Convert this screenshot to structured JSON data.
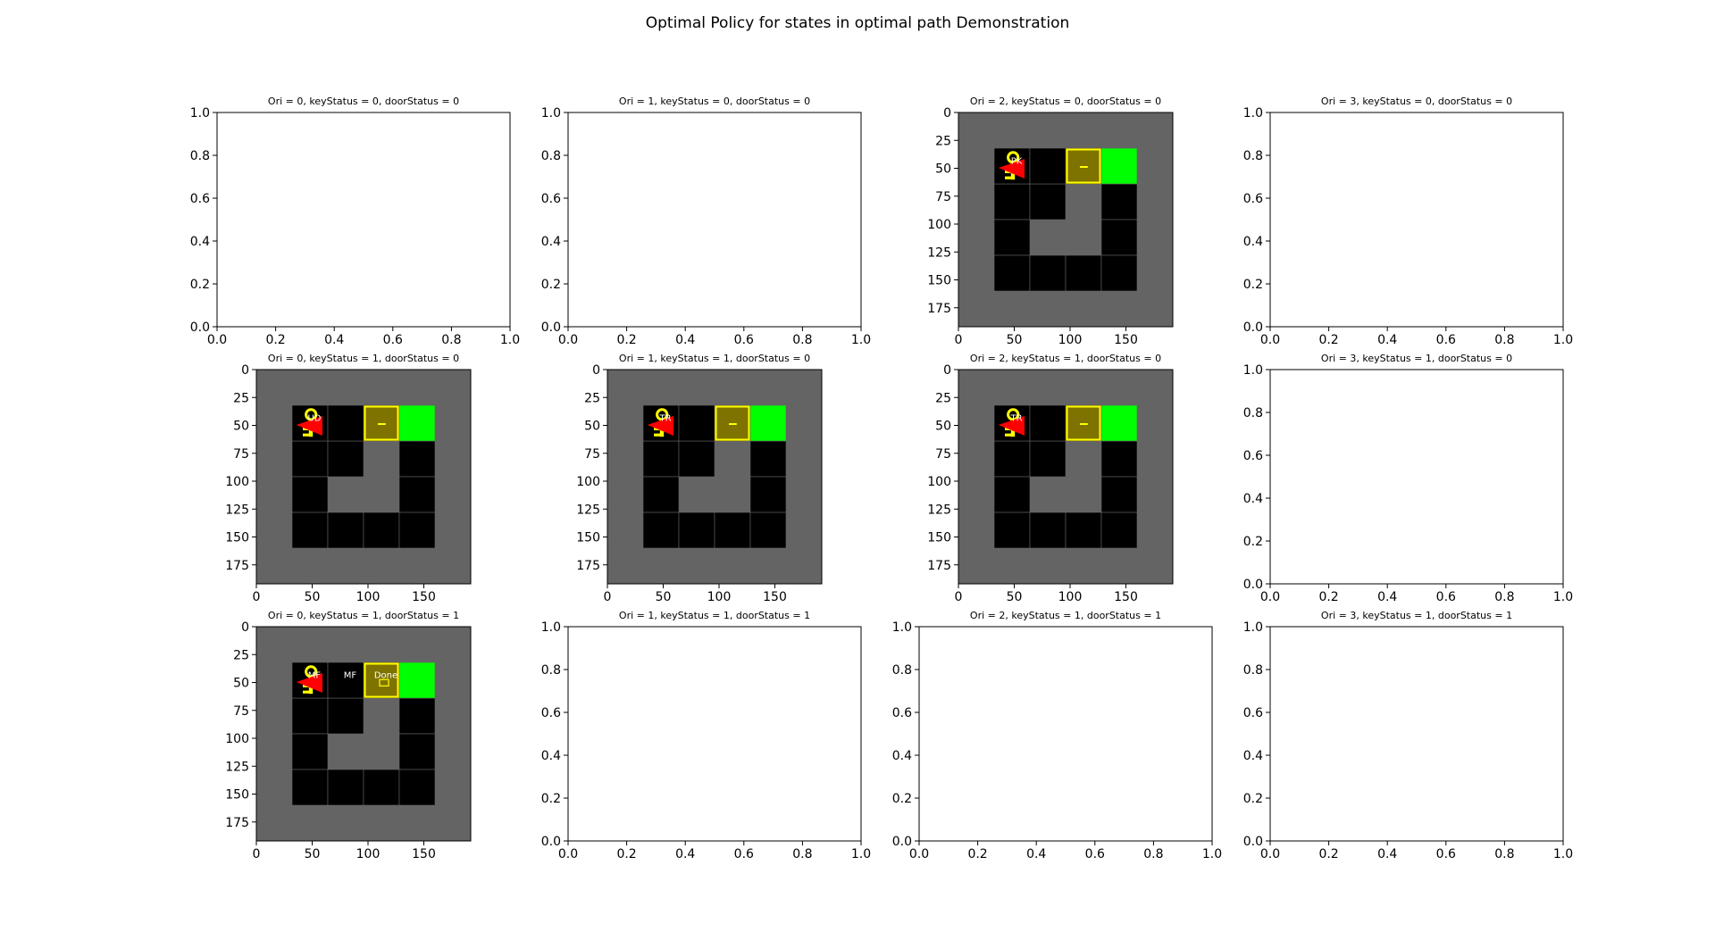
{
  "figure": {
    "title": "Optimal Policy for states in optimal path Demonstration"
  },
  "colors": {
    "floor": "#646464",
    "wall": "#000000",
    "grid_line": "#646464",
    "goal": "#00ff00",
    "door_fill": "#7f7300",
    "door_border": "#ffff00",
    "key": "#ffff00",
    "agent": "#ff0000",
    "action_text": "#ffffff"
  },
  "chart_data": [
    {
      "type": "image",
      "title": "Ori = 0, keyStatus = 0, doorStatus = 0",
      "empty": true,
      "xlim": [
        0.0,
        1.0
      ],
      "ylim": [
        0.0,
        1.0
      ],
      "xticks": [
        "0.0",
        "0.2",
        "0.4",
        "0.6",
        "0.8",
        "1.0"
      ],
      "yticks": [
        "0.0",
        "0.2",
        "0.4",
        "0.6",
        "0.8",
        "1.0"
      ]
    },
    {
      "type": "image",
      "title": "Ori = 1, keyStatus = 0, doorStatus = 0",
      "empty": true,
      "xlim": [
        0.0,
        1.0
      ],
      "ylim": [
        0.0,
        1.0
      ],
      "xticks": [
        "0.0",
        "0.2",
        "0.4",
        "0.6",
        "0.8",
        "1.0"
      ],
      "yticks": [
        "0.0",
        "0.2",
        "0.4",
        "0.6",
        "0.8",
        "1.0"
      ]
    },
    {
      "type": "image",
      "title": "Ori = 2, keyStatus = 0, doorStatus = 0",
      "empty": false,
      "xlim": [
        0,
        192
      ],
      "ylim": [
        192,
        0
      ],
      "xticks": [
        "0",
        "50",
        "100",
        "150"
      ],
      "yticks": [
        "0",
        "25",
        "50",
        "75",
        "100",
        "125",
        "150",
        "175"
      ],
      "door_status": 0,
      "agent_cell": [
        1,
        1
      ],
      "actions": [
        {
          "cell": [
            1,
            1
          ],
          "label": "PK"
        }
      ]
    },
    {
      "type": "image",
      "title": "Ori = 3, keyStatus = 0, doorStatus = 0",
      "empty": true,
      "xlim": [
        0.0,
        1.0
      ],
      "ylim": [
        0.0,
        1.0
      ],
      "xticks": [
        "0.0",
        "0.2",
        "0.4",
        "0.6",
        "0.8",
        "1.0"
      ],
      "yticks": [
        "0.0",
        "0.2",
        "0.4",
        "0.6",
        "0.8",
        "1.0"
      ]
    },
    {
      "type": "image",
      "title": "Ori = 0, keyStatus = 1, doorStatus = 0",
      "empty": false,
      "xlim": [
        0,
        192
      ],
      "ylim": [
        192,
        0
      ],
      "xticks": [
        "0",
        "50",
        "100",
        "150"
      ],
      "yticks": [
        "0",
        "25",
        "50",
        "75",
        "100",
        "125",
        "150",
        "175"
      ],
      "door_status": 0,
      "agent_cell": [
        1,
        1
      ],
      "actions": [
        {
          "cell": [
            1,
            1
          ],
          "label": "UD"
        }
      ]
    },
    {
      "type": "image",
      "title": "Ori = 1, keyStatus = 1, doorStatus = 0",
      "empty": false,
      "xlim": [
        0,
        192
      ],
      "ylim": [
        192,
        0
      ],
      "xticks": [
        "0",
        "50",
        "100",
        "150"
      ],
      "yticks": [
        "0",
        "25",
        "50",
        "75",
        "100",
        "125",
        "150",
        "175"
      ],
      "door_status": 0,
      "agent_cell": [
        1,
        1
      ],
      "actions": [
        {
          "cell": [
            1,
            1
          ],
          "label": "TR"
        }
      ]
    },
    {
      "type": "image",
      "title": "Ori = 2, keyStatus = 1, doorStatus = 0",
      "empty": false,
      "xlim": [
        0,
        192
      ],
      "ylim": [
        192,
        0
      ],
      "xticks": [
        "0",
        "50",
        "100",
        "150"
      ],
      "yticks": [
        "0",
        "25",
        "50",
        "75",
        "100",
        "125",
        "150",
        "175"
      ],
      "door_status": 0,
      "agent_cell": [
        1,
        1
      ],
      "actions": [
        {
          "cell": [
            1,
            1
          ],
          "label": "TR"
        }
      ]
    },
    {
      "type": "image",
      "title": "Ori = 3, keyStatus = 1, doorStatus = 0",
      "empty": true,
      "xlim": [
        0.0,
        1.0
      ],
      "ylim": [
        0.0,
        1.0
      ],
      "xticks": [
        "0.0",
        "0.2",
        "0.4",
        "0.6",
        "0.8",
        "1.0"
      ],
      "yticks": [
        "0.0",
        "0.2",
        "0.4",
        "0.6",
        "0.8",
        "1.0"
      ]
    },
    {
      "type": "image",
      "title": "Ori = 0, keyStatus = 1, doorStatus = 1",
      "empty": false,
      "xlim": [
        0,
        192
      ],
      "ylim": [
        192,
        0
      ],
      "xticks": [
        "0",
        "50",
        "100",
        "150"
      ],
      "yticks": [
        "0",
        "25",
        "50",
        "75",
        "100",
        "125",
        "150",
        "175"
      ],
      "door_status": 1,
      "agent_cell": [
        1,
        1
      ],
      "actions": [
        {
          "cell": [
            1,
            1
          ],
          "label": "MF"
        },
        {
          "cell": [
            2,
            1
          ],
          "label": "MF"
        },
        {
          "cell": [
            3,
            1
          ],
          "label": "Done"
        }
      ]
    },
    {
      "type": "image",
      "title": "Ori = 1, keyStatus = 1, doorStatus = 1",
      "empty": true,
      "xlim": [
        0.0,
        1.0
      ],
      "ylim": [
        0.0,
        1.0
      ],
      "xticks": [
        "0.0",
        "0.2",
        "0.4",
        "0.6",
        "0.8",
        "1.0"
      ],
      "yticks": [
        "0.0",
        "0.2",
        "0.4",
        "0.6",
        "0.8",
        "1.0"
      ]
    },
    {
      "type": "image",
      "title": "Ori = 2, keyStatus = 1, doorStatus = 1",
      "empty": true,
      "xlim": [
        0.0,
        1.0
      ],
      "ylim": [
        0.0,
        1.0
      ],
      "xticks": [
        "0.0",
        "0.2",
        "0.4",
        "0.6",
        "0.8",
        "1.0"
      ],
      "yticks": [
        "0.0",
        "0.2",
        "0.4",
        "0.6",
        "0.8",
        "1.0"
      ]
    },
    {
      "type": "image",
      "title": "Ori = 3, keyStatus = 1, doorStatus = 1",
      "empty": true,
      "xlim": [
        0.0,
        1.0
      ],
      "ylim": [
        0.0,
        1.0
      ],
      "xticks": [
        "0.0",
        "0.2",
        "0.4",
        "0.6",
        "0.8",
        "1.0"
      ],
      "yticks": [
        "0.0",
        "0.2",
        "0.4",
        "0.6",
        "0.8",
        "1.0"
      ]
    }
  ]
}
